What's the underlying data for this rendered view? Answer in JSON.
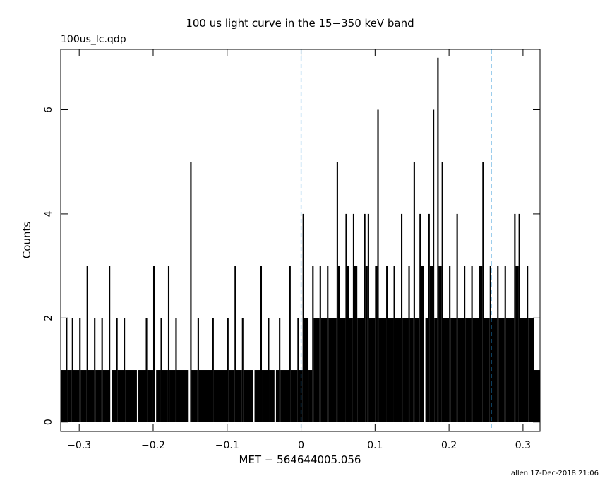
{
  "chart_data": {
    "type": "step",
    "title": "100 us light curve in the 15−350 keV band",
    "subtitle": "100us_lc.qdp",
    "x_label": "MET − 564644005.056",
    "y_label": "Counts",
    "footer": "allen 17-Dec-2018 21:06",
    "color": "#000000",
    "xlim": [
      -0.325,
      0.323
    ],
    "ylim": [
      -0.18,
      7.16
    ],
    "xticks": [
      {
        "value": -0.3,
        "label": "−0.3"
      },
      {
        "value": -0.2,
        "label": "−0.2"
      },
      {
        "value": -0.1,
        "label": "−0.1"
      },
      0,
      0.1,
      0.2,
      0.3
    ],
    "yticks": [
      0,
      2,
      4,
      6
    ],
    "vlines": [
      0,
      0.257
    ],
    "vline_color": "#1f8fd6",
    "x": [
      -0.325,
      -0.318,
      -0.316,
      -0.31,
      -0.308,
      -0.3,
      -0.298,
      -0.29,
      -0.288,
      -0.28,
      -0.278,
      -0.27,
      -0.268,
      -0.26,
      -0.258,
      -0.256,
      -0.25,
      -0.248,
      -0.24,
      -0.238,
      -0.222,
      -0.22,
      -0.21,
      -0.208,
      -0.2,
      -0.198,
      -0.196,
      -0.19,
      -0.188,
      -0.18,
      -0.178,
      -0.17,
      -0.168,
      -0.152,
      -0.15,
      -0.148,
      -0.14,
      -0.138,
      -0.12,
      -0.118,
      -0.1,
      -0.098,
      -0.09,
      -0.088,
      -0.08,
      -0.078,
      -0.065,
      -0.063,
      -0.055,
      -0.053,
      -0.045,
      -0.043,
      -0.036,
      -0.034,
      -0.03,
      -0.028,
      -0.016,
      -0.014,
      -0.005,
      -0.003,
      0.002,
      0.004,
      0.01,
      0.015,
      0.017,
      0.025,
      0.027,
      0.035,
      0.037,
      0.048,
      0.05,
      0.052,
      0.06,
      0.062,
      0.065,
      0.07,
      0.072,
      0.076,
      0.085,
      0.087,
      0.09,
      0.092,
      0.1,
      0.103,
      0.105,
      0.115,
      0.117,
      0.125,
      0.127,
      0.135,
      0.137,
      0.145,
      0.147,
      0.152,
      0.154,
      0.16,
      0.162,
      0.166,
      0.168,
      0.172,
      0.174,
      0.178,
      0.18,
      0.184,
      0.186,
      0.19,
      0.192,
      0.2,
      0.202,
      0.21,
      0.212,
      0.22,
      0.222,
      0.23,
      0.232,
      0.24,
      0.245,
      0.247,
      0.255,
      0.257,
      0.265,
      0.267,
      0.275,
      0.277,
      0.288,
      0.29,
      0.294,
      0.296,
      0.305,
      0.307,
      0.315
    ],
    "values": [
      1,
      2,
      1,
      2,
      1,
      2,
      1,
      3,
      1,
      2,
      1,
      2,
      1,
      3,
      0,
      1,
      2,
      1,
      2,
      1,
      0,
      1,
      2,
      1,
      3,
      0,
      1,
      2,
      1,
      3,
      1,
      2,
      1,
      0,
      5,
      1,
      2,
      1,
      2,
      1,
      2,
      1,
      3,
      1,
      2,
      1,
      0,
      1,
      3,
      1,
      2,
      1,
      0,
      1,
      2,
      1,
      3,
      1,
      2,
      1,
      4,
      2,
      1,
      3,
      2,
      3,
      2,
      3,
      2,
      5,
      3,
      2,
      4,
      3,
      2,
      4,
      3,
      2,
      4,
      3,
      4,
      2,
      3,
      6,
      2,
      3,
      2,
      3,
      2,
      4,
      2,
      3,
      2,
      5,
      2,
      4,
      3,
      0,
      2,
      4,
      3,
      6,
      2,
      7,
      3,
      5,
      2,
      3,
      2,
      4,
      2,
      3,
      2,
      3,
      2,
      3,
      5,
      2,
      3,
      2,
      3,
      2,
      3,
      2,
      4,
      3,
      4,
      2,
      3,
      2,
      1
    ]
  }
}
